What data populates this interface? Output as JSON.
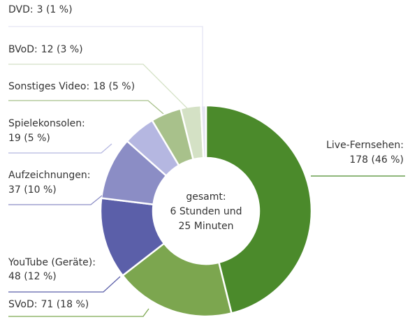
{
  "chart_data": {
    "type": "donut",
    "categories": [
      "Live-Fernsehen:",
      "SVoD:",
      "YouTube (Geräte):",
      "Aufzeichnungen:",
      "Spielekonsolen:",
      "Sonstiges Video:",
      "BVoD:",
      "DVD:"
    ],
    "values": [
      178,
      71,
      48,
      37,
      19,
      18,
      12,
      3
    ],
    "value_labels": [
      "178 (46 %)",
      "71 (18 %)",
      "48 (12 %)",
      "37 (10 %)",
      "19 (5 %)",
      "18 (5 %)",
      "12 (3 %)",
      "3 (1 %)"
    ],
    "colors": [
      "#4b8a2b",
      "#7ca64f",
      "#5b5fa9",
      "#8b8dc5",
      "#b5b7e1",
      "#a8c18b",
      "#d4e1c5",
      "#e5e5f3"
    ],
    "center_label": [
      "gesamt:",
      "6 Stunden und",
      "25 Minuten"
    ]
  }
}
